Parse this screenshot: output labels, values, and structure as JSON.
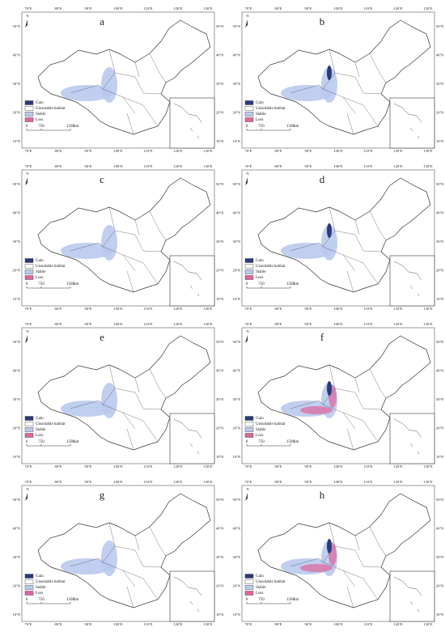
{
  "panels": [
    {
      "label": "a"
    },
    {
      "label": "b"
    },
    {
      "label": "c"
    },
    {
      "label": "d"
    },
    {
      "label": "e"
    },
    {
      "label": "f"
    },
    {
      "label": "g"
    },
    {
      "label": "h"
    }
  ],
  "legend": [
    "Gain",
    "Unsuitable habitat",
    "Stable",
    "Loss"
  ],
  "scale": {
    "labels": [
      "0",
      "750",
      "1500"
    ],
    "unit": "km"
  },
  "longitudes": [
    "70°E",
    "80°E",
    "90°E",
    "100°E",
    "110°E",
    "120°E",
    "130°E"
  ],
  "latitudes": [
    "50°N",
    "40°N",
    "30°N",
    "20°N",
    "10°N"
  ],
  "north": "N"
}
